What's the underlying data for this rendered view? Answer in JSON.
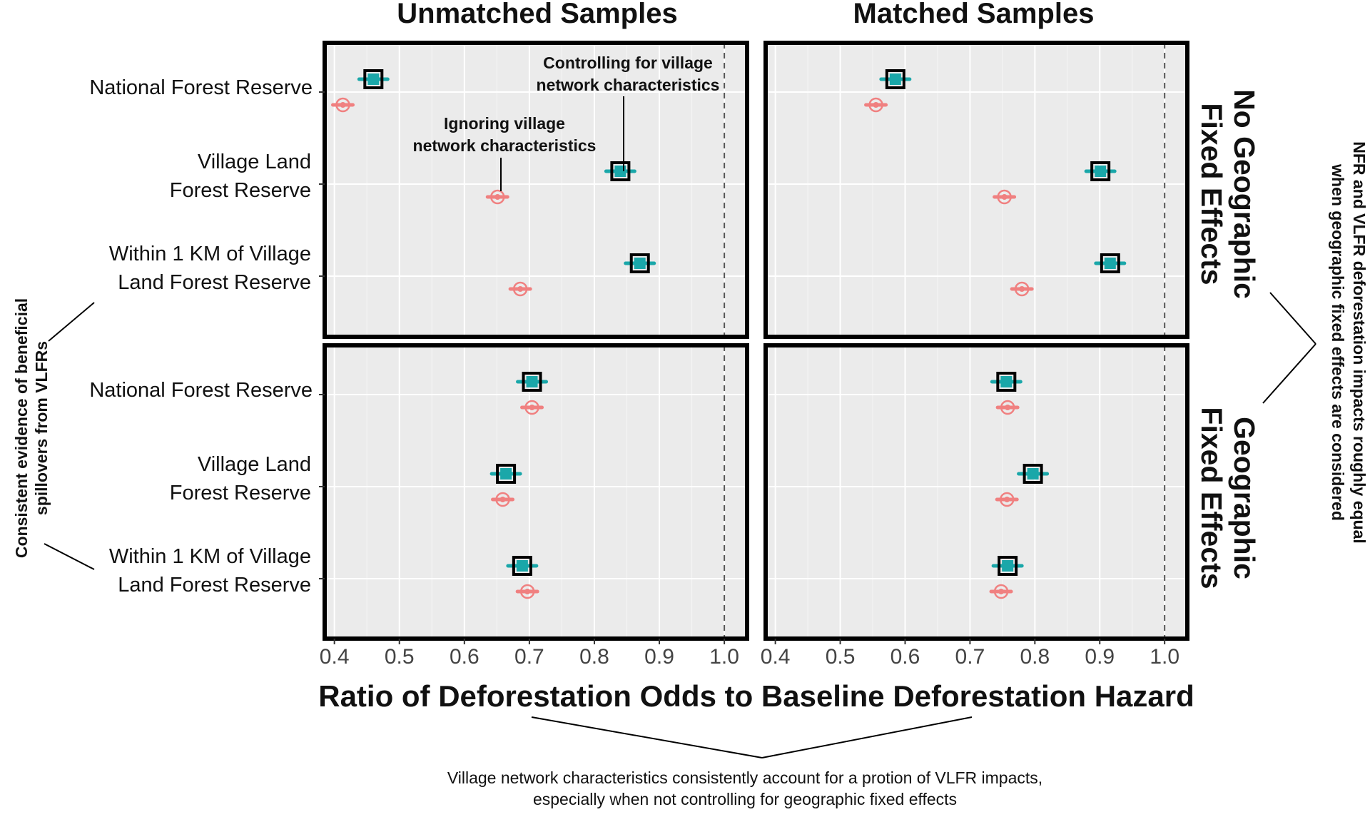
{
  "chart_data": {
    "type": "scatter",
    "columns": [
      "Unmatched Samples",
      "Matched Samples"
    ],
    "rows": [
      "No Geographic Fixed Effects",
      "Geographic Fixed Effects"
    ],
    "row_strip_lines": [
      [
        "No Geographic",
        "Fixed Effects"
      ],
      [
        "Geographic",
        "Fixed Effects"
      ]
    ],
    "categories": [
      [
        "National Forest Reserve"
      ],
      [
        "Village Land",
        "Forest Reserve"
      ],
      [
        "Within 1 KM of Village",
        "Land Forest Reserve"
      ]
    ],
    "x_ticks": [
      "0.4",
      "0.5",
      "0.6",
      "0.7",
      "0.8",
      "0.9",
      "1.0"
    ],
    "xlim": [
      0.385,
      1.035
    ],
    "reference_x": 1.0,
    "xlabel": "Ratio of Deforestation Odds to Baseline Deforestation Hazard",
    "series": [
      {
        "name": "Controlling for village network characteristics",
        "color": "#1aa7a9",
        "marker": "square"
      },
      {
        "name": "Ignoring village network characteristics",
        "color": "#f08080",
        "marker": "circle"
      }
    ],
    "panels": [
      {
        "column": "Unmatched Samples",
        "row": "No Geographic Fixed Effects",
        "controlling": [
          0.46,
          0.84,
          0.87
        ],
        "ignoring": [
          0.413,
          0.651,
          0.686
        ]
      },
      {
        "column": "Matched Samples",
        "row": "No Geographic Fixed Effects",
        "controlling": [
          0.585,
          0.901,
          0.916
        ],
        "ignoring": [
          0.555,
          0.753,
          0.78
        ]
      },
      {
        "column": "Unmatched Samples",
        "row": "Geographic Fixed Effects",
        "controlling": [
          0.704,
          0.664,
          0.689
        ],
        "ignoring": [
          0.704,
          0.659,
          0.697
        ]
      },
      {
        "column": "Matched Samples",
        "row": "Geographic Fixed Effects",
        "controlling": [
          0.756,
          0.797,
          0.758
        ],
        "ignoring": [
          0.758,
          0.757,
          0.748
        ]
      }
    ],
    "annotations": {
      "controlling_label": [
        "Controlling for village",
        "network characteristics"
      ],
      "ignoring_label": [
        "Ignoring village",
        "network characteristics"
      ],
      "left_note": [
        "Consistent evidence of beneficial",
        "spillovers from VLFRs"
      ],
      "right_note": [
        "NFR and VLFR deforestation impacts roughly equal",
        "when geographic fixed effects are considered"
      ],
      "bottom_note": [
        "Village network characteristics consistently account for a protion of VLFR impacts,",
        "especially when not controlling for geographic fixed effects"
      ]
    }
  }
}
